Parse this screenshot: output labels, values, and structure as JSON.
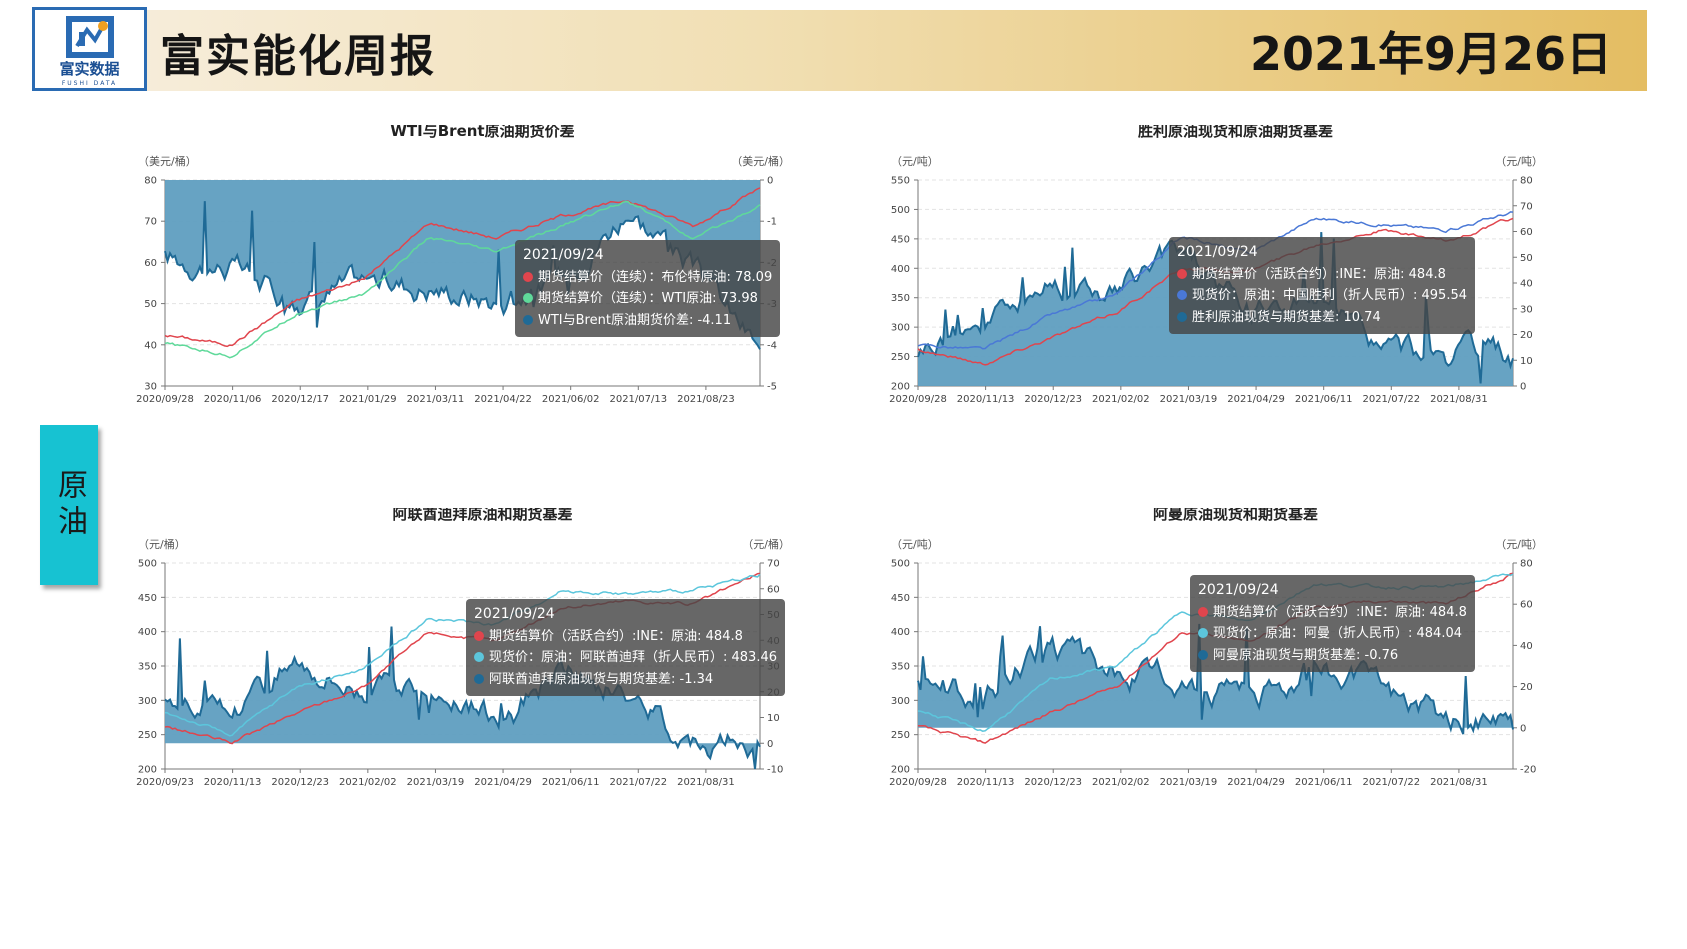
{
  "header": {
    "logo_text": "富实数据",
    "logo_sub": "FUSHI DATA",
    "title": "富实能化周报",
    "date": "2021年9月26日"
  },
  "side_tab": {
    "label": "原油"
  },
  "colors": {
    "area": "#5f9ec0",
    "area_line": "#1f6a96",
    "red": "#e0454d",
    "green": "#5fd99a",
    "blue": "#4a78d6",
    "cyan": "#5cc6dc"
  },
  "charts": [
    {
      "id": "wti-brent",
      "title": "WTI与Brent原油期货价差",
      "left_unit": "（美元/桶）",
      "right_unit": "（美元/桶）",
      "left_ticks": [
        "30",
        "40",
        "50",
        "60",
        "70",
        "80"
      ],
      "right_ticks": [
        "-5",
        "-4",
        "-3",
        "-2",
        "-1",
        "0"
      ],
      "x_ticks": [
        "2020/09/28",
        "2020/11/06",
        "2020/12/17",
        "2021/01/29",
        "2021/03/11",
        "2021/04/22",
        "2021/06/02",
        "2021/07/13",
        "2021/08/23"
      ],
      "tooltip": {
        "date": "2021/09/24",
        "rows": [
          {
            "color": "#e0454d",
            "text": "期货结算价（连续）：布伦特原油: 78.09"
          },
          {
            "color": "#5fd99a",
            "text": "期货结算价（连续）：WTI原油: 73.98"
          },
          {
            "color": "#1f6a96",
            "text": "WTI与Brent原油期货价差: -4.11"
          }
        ]
      }
    },
    {
      "id": "shengli",
      "title": "胜利原油现货和原油期货基差",
      "left_unit": "（元/吨）",
      "right_unit": "（元/吨）",
      "left_ticks": [
        "200",
        "250",
        "300",
        "350",
        "400",
        "450",
        "500",
        "550"
      ],
      "right_ticks": [
        "0",
        "10",
        "20",
        "30",
        "40",
        "50",
        "60",
        "70",
        "80"
      ],
      "x_ticks": [
        "2020/09/28",
        "2020/11/13",
        "2020/12/23",
        "2021/02/02",
        "2021/03/19",
        "2021/04/29",
        "2021/06/11",
        "2021/07/22",
        "2021/08/31"
      ],
      "tooltip": {
        "date": "2021/09/24",
        "rows": [
          {
            "color": "#e0454d",
            "text": "期货结算价（活跃合约）:INE：原油: 484.8"
          },
          {
            "color": "#4a78d6",
            "text": "现货价：原油：中国胜利（折人民币）: 495.54"
          },
          {
            "color": "#1f6a96",
            "text": "胜利原油现货与期货基差: 10.74"
          }
        ]
      }
    },
    {
      "id": "uae",
      "title": "阿联酋迪拜原油和期货基差",
      "left_unit": "（元/桶）",
      "right_unit": "（元/桶）",
      "left_ticks": [
        "200",
        "250",
        "300",
        "350",
        "400",
        "450",
        "500"
      ],
      "right_ticks": [
        "-10",
        "0",
        "10",
        "20",
        "30",
        "40",
        "50",
        "60",
        "70"
      ],
      "x_ticks": [
        "2020/09/23",
        "2020/11/13",
        "2020/12/23",
        "2021/02/02",
        "2021/03/19",
        "2021/04/29",
        "2021/06/11",
        "2021/07/22",
        "2021/08/31"
      ],
      "tooltip": {
        "date": "2021/09/24",
        "rows": [
          {
            "color": "#e0454d",
            "text": "期货结算价（活跃合约）:INE：原油: 484.8"
          },
          {
            "color": "#5cc6dc",
            "text": "现货价：原油：阿联酋迪拜（折人民币）: 483.46"
          },
          {
            "color": "#1f6a96",
            "text": "阿联酋迪拜原油现货与期货基差: -1.34"
          }
        ]
      }
    },
    {
      "id": "oman",
      "title": "阿曼原油现货和期货基差",
      "left_unit": "（元/吨）",
      "right_unit": "（元/吨）",
      "left_ticks": [
        "200",
        "250",
        "300",
        "350",
        "400",
        "450",
        "500"
      ],
      "right_ticks": [
        "-20",
        "0",
        "20",
        "40",
        "60",
        "80"
      ],
      "x_ticks": [
        "2020/09/28",
        "2020/11/13",
        "2020/12/23",
        "2021/02/02",
        "2021/03/19",
        "2021/04/29",
        "2021/06/11",
        "2021/07/22",
        "2021/08/31"
      ],
      "tooltip": {
        "date": "2021/09/24",
        "rows": [
          {
            "color": "#e0454d",
            "text": "期货结算价（活跃合约）:INE：原油: 484.8"
          },
          {
            "color": "#5cc6dc",
            "text": "现货价：原油：阿曼（折人民币）: 484.04"
          },
          {
            "color": "#1f6a96",
            "text": "阿曼原油现货与期货基差: -0.76"
          }
        ]
      }
    }
  ],
  "chart_data": [
    {
      "type": "line",
      "title": "WTI与Brent原油期货价差",
      "x": [
        "2020/09/28",
        "2020/11/06",
        "2020/12/17",
        "2021/01/29",
        "2021/03/11",
        "2021/04/22",
        "2021/06/02",
        "2021/07/13",
        "2021/08/23",
        "2021/09/24"
      ],
      "ylim": [
        30,
        80
      ],
      "y2lim": [
        -5,
        0
      ],
      "series": [
        {
          "name": "期货结算价（连续）：布伦特原油",
          "axis": "left",
          "values": [
            42.4,
            40.0,
            50.8,
            55.9,
            69.6,
            66.0,
            71.3,
            75.2,
            68.8,
            78.09
          ]
        },
        {
          "name": "期货结算价（连续）：WTI原油",
          "axis": "left",
          "values": [
            40.3,
            37.3,
            47.8,
            52.2,
            66.0,
            62.4,
            68.8,
            75.2,
            65.6,
            73.98
          ]
        },
        {
          "name": "WTI与Brent原油期货价差",
          "axis": "right",
          "type": "area",
          "values": [
            -1.9,
            -2.1,
            -3.0,
            -2.4,
            -2.6,
            -2.9,
            -2.4,
            -0.7,
            -2.2,
            -4.11
          ]
        }
      ]
    },
    {
      "type": "line",
      "title": "胜利原油现货和原油期货基差",
      "x": [
        "2020/09/28",
        "2020/11/13",
        "2020/12/23",
        "2021/02/02",
        "2021/03/19",
        "2021/04/29",
        "2021/06/11",
        "2021/07/22",
        "2021/08/31",
        "2021/09/24"
      ],
      "ylim": [
        200,
        550
      ],
      "y2lim": [
        0,
        80
      ],
      "series": [
        {
          "name": "期货结算价（活跃合约）:INE：原油",
          "axis": "left",
          "values": [
            262,
            238,
            282,
            325,
            400,
            395,
            440,
            465,
            445,
            484.8
          ]
        },
        {
          "name": "现货价：原油：中国胜利（折人民币）",
          "axis": "left",
          "values": [
            270,
            262,
            320,
            355,
            455,
            425,
            485,
            475,
            465,
            495.54
          ]
        },
        {
          "name": "胜利原油现货与期货基差",
          "axis": "right",
          "type": "area",
          "values": [
            14,
            26,
            40,
            36,
            54,
            28,
            34,
            15,
            12,
            10.74
          ]
        }
      ]
    },
    {
      "type": "line",
      "title": "阿联酋迪拜原油和期货基差",
      "x": [
        "2020/09/23",
        "2020/11/13",
        "2020/12/23",
        "2021/02/02",
        "2021/03/19",
        "2021/04/29",
        "2021/06/11",
        "2021/07/22",
        "2021/08/31",
        "2021/09/24"
      ],
      "ylim": [
        200,
        500
      ],
      "y2lim": [
        -10,
        70
      ],
      "series": [
        {
          "name": "期货结算价（活跃合约）:INE：原油",
          "axis": "left",
          "values": [
            262,
            238,
            282,
            320,
            400,
            385,
            435,
            445,
            440,
            484.8
          ]
        },
        {
          "name": "现货价：原油：阿联酋迪拜（折人民币）",
          "axis": "left",
          "values": [
            282,
            250,
            320,
            345,
            420,
            410,
            460,
            455,
            460,
            483.46
          ]
        },
        {
          "name": "阿联酋迪拜原油现货与期货基差",
          "axis": "right",
          "type": "area",
          "values": [
            18,
            12,
            34,
            22,
            20,
            10,
            28,
            18,
            2,
            -1.34
          ]
        }
      ]
    },
    {
      "type": "line",
      "title": "阿曼原油现货和期货基差",
      "x": [
        "2020/09/28",
        "2020/11/13",
        "2020/12/23",
        "2021/02/02",
        "2021/03/19",
        "2021/04/29",
        "2021/06/11",
        "2021/07/22",
        "2021/08/31",
        "2021/09/24"
      ],
      "ylim": [
        200,
        500
      ],
      "y2lim": [
        -20,
        80
      ],
      "series": [
        {
          "name": "期货结算价（活跃合约）:INE：原油",
          "axis": "left",
          "values": [
            262,
            238,
            282,
            320,
            400,
            385,
            435,
            445,
            440,
            484.8
          ]
        },
        {
          "name": "现货价：原油：阿曼（折人民币）",
          "axis": "left",
          "values": [
            286,
            255,
            330,
            350,
            430,
            415,
            470,
            465,
            465,
            484.04
          ]
        },
        {
          "name": "阿曼原油现货与期货基差",
          "axis": "right",
          "type": "area",
          "values": [
            22,
            16,
            38,
            26,
            24,
            14,
            30,
            20,
            5,
            -0.76
          ]
        }
      ]
    }
  ]
}
